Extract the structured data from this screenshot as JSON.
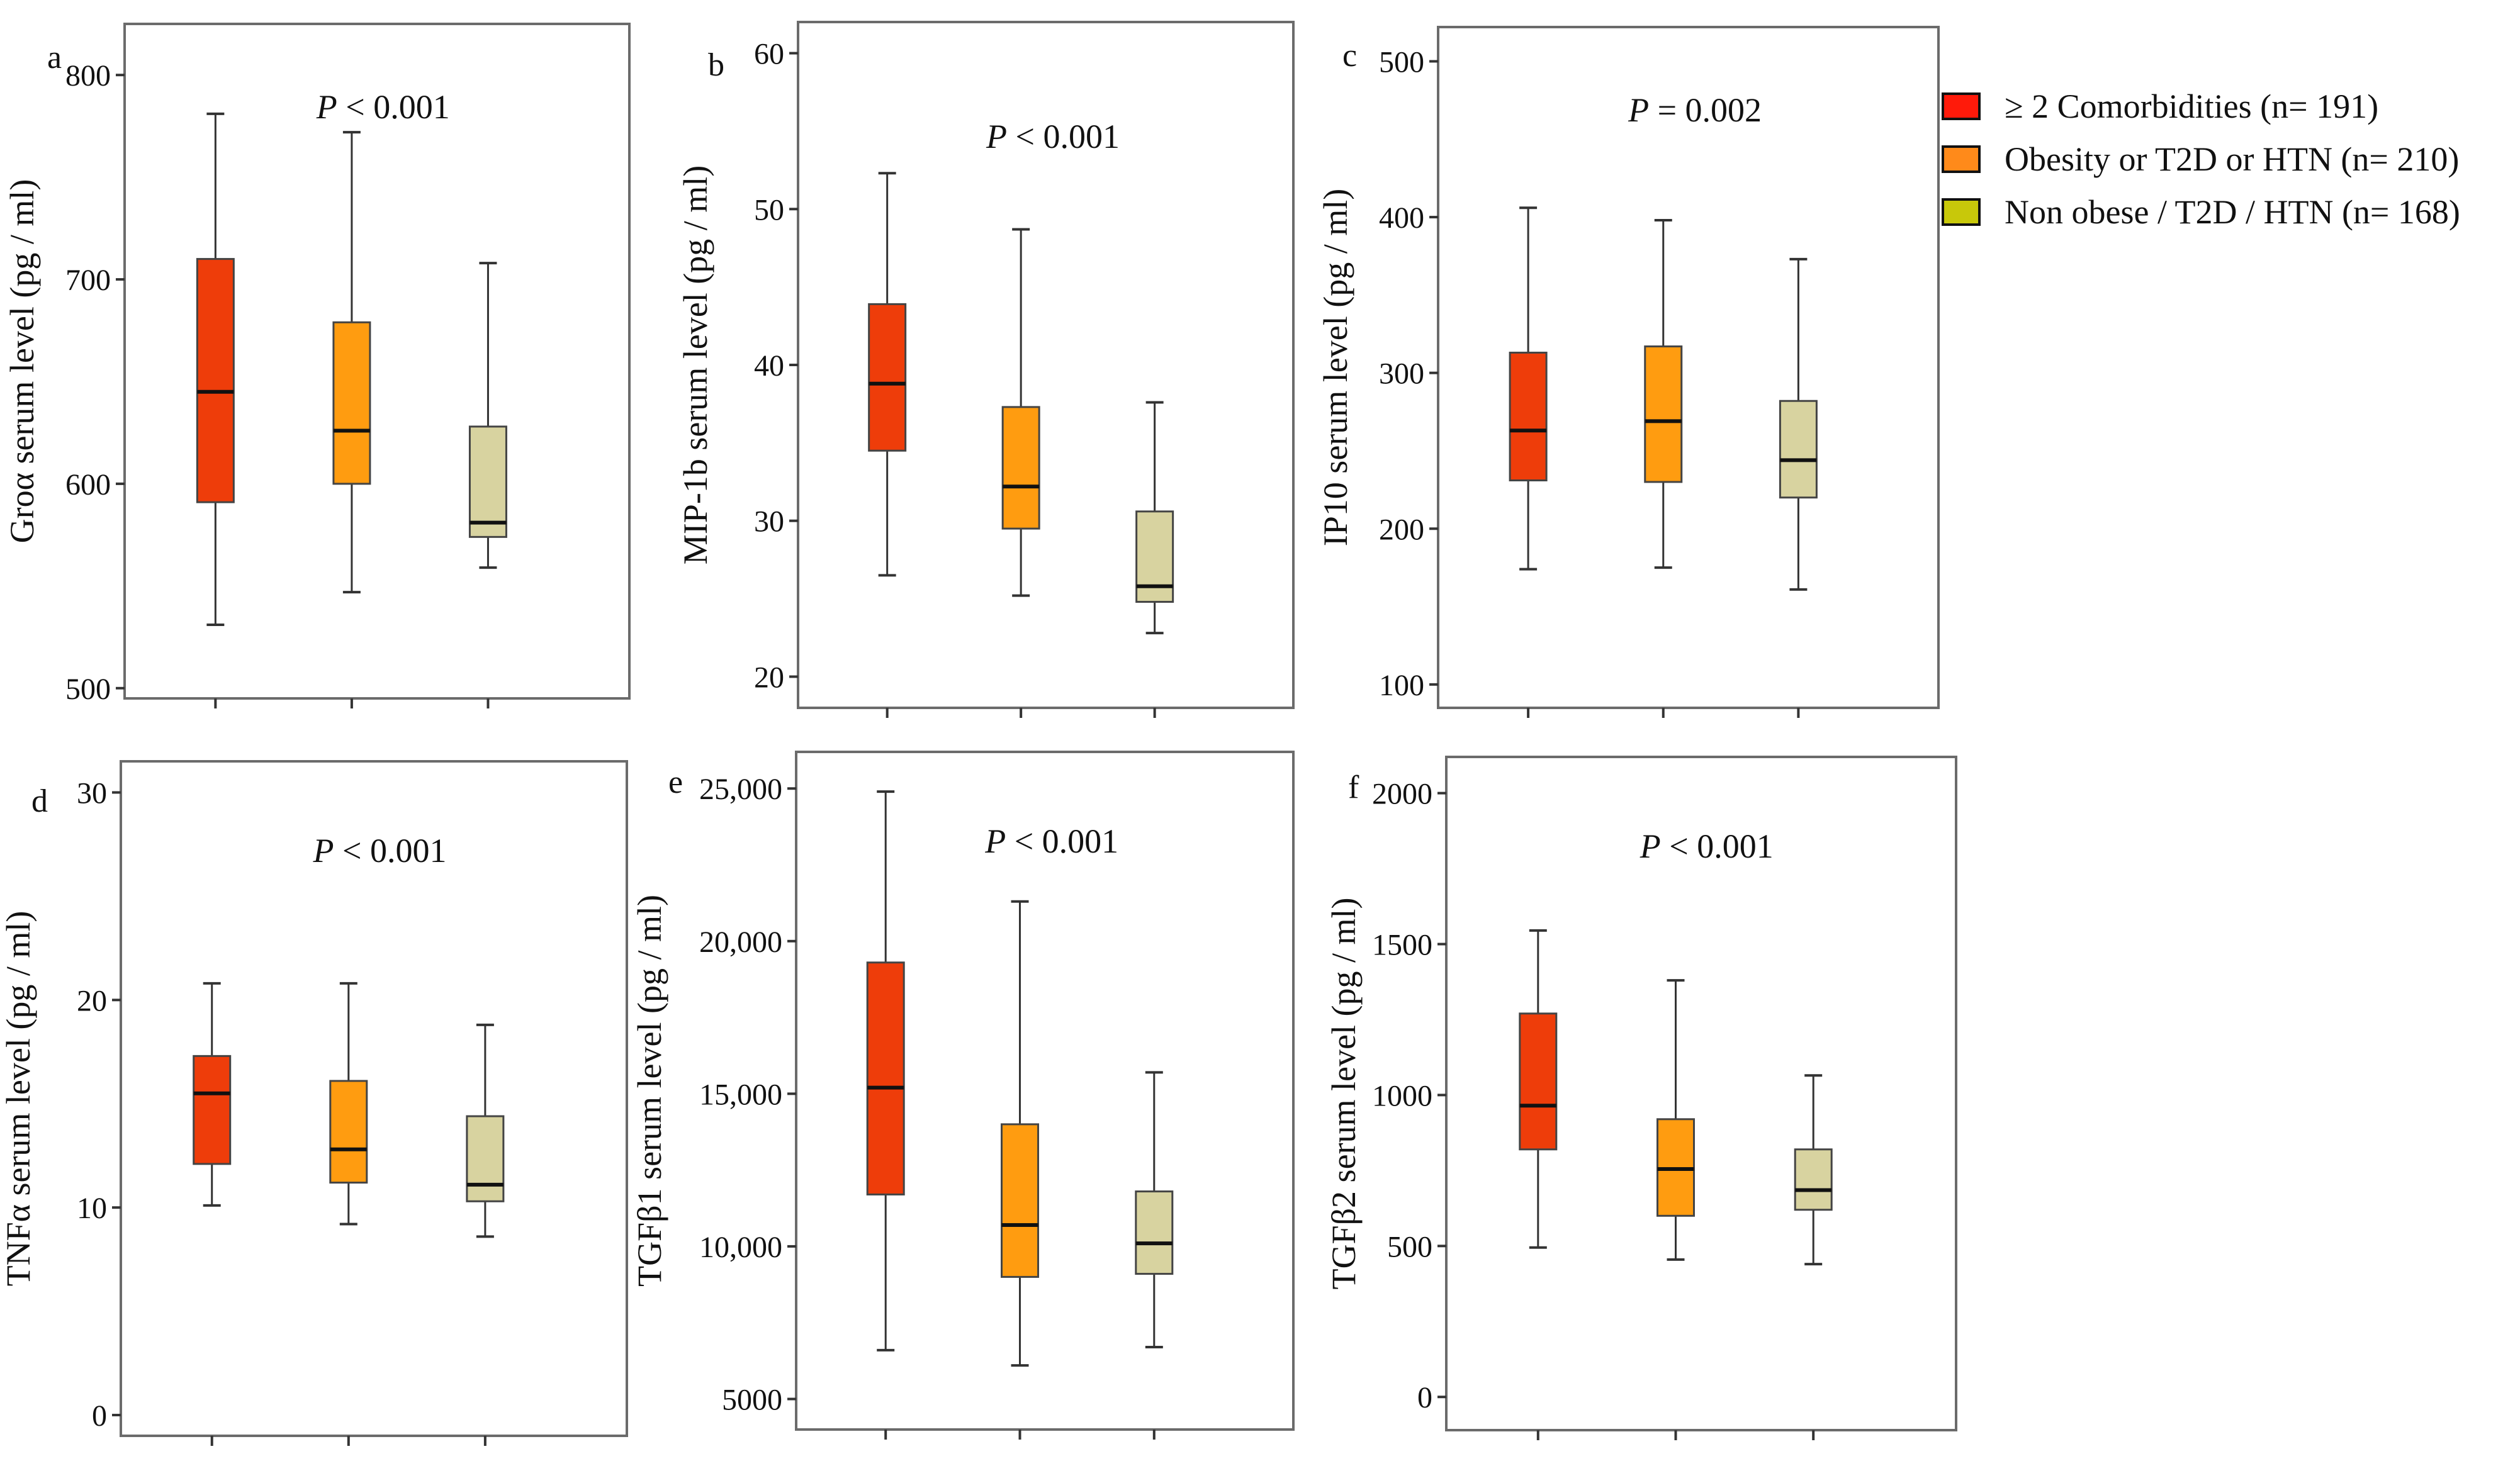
{
  "legend": {
    "items": [
      {
        "label": "≥ 2 Comorbidities (n= 191)",
        "color": "#ff1a0a"
      },
      {
        "label": "Obesity or T2D or HTN (n= 210)",
        "color": "#ff8a1a"
      },
      {
        "label": "Non obese / T2D / HTN (n= 168)",
        "color": "#c8c80a"
      }
    ]
  },
  "chart_data": [
    {
      "type": "box",
      "panel": "a",
      "p_value": "< 0.001",
      "ylabel": "Groα serum level (pg / ml)",
      "ylim": [
        495,
        825
      ],
      "yticks": [
        500,
        600,
        700,
        800
      ],
      "ytick_labels": [
        "500",
        "600",
        "700",
        "800"
      ],
      "series": [
        {
          "whisker_low": 531,
          "q1": 591,
          "median": 645,
          "q3": 710,
          "whisker_high": 781,
          "fill": "#ee3d0a"
        },
        {
          "whisker_low": 547,
          "q1": 600,
          "median": 626,
          "q3": 679,
          "whisker_high": 772,
          "fill": "#ff9c10"
        },
        {
          "whisker_low": 559,
          "q1": 574,
          "median": 581,
          "q3": 628,
          "whisker_high": 708,
          "fill": "#d8d3a0"
        }
      ]
    },
    {
      "type": "box",
      "panel": "b",
      "p_value": "< 0.001",
      "ylabel": "MIP-1b serum level (pg / ml)",
      "ylim": [
        18,
        62
      ],
      "yticks": [
        20,
        30,
        40,
        50,
        60
      ],
      "ytick_labels": [
        "20",
        "30",
        "40",
        "50",
        "60"
      ],
      "series": [
        {
          "whisker_low": 26.5,
          "q1": 34.5,
          "median": 38.8,
          "q3": 43.9,
          "whisker_high": 52.3,
          "fill": "#ee3d0a"
        },
        {
          "whisker_low": 25.2,
          "q1": 29.5,
          "median": 32.2,
          "q3": 37.3,
          "whisker_high": 48.7,
          "fill": "#ff9c10"
        },
        {
          "whisker_low": 22.8,
          "q1": 24.8,
          "median": 25.8,
          "q3": 30.6,
          "whisker_high": 37.6,
          "fill": "#d8d3a0"
        }
      ]
    },
    {
      "type": "box",
      "panel": "c",
      "p_value": "= 0.002",
      "ylabel": "IP10 serum level (pg / ml)",
      "ylim": [
        85,
        522
      ],
      "yticks": [
        100,
        200,
        300,
        400,
        500
      ],
      "ytick_labels": [
        "100",
        "200",
        "300",
        "400",
        "500"
      ],
      "series": [
        {
          "whisker_low": 174,
          "q1": 231,
          "median": 263,
          "q3": 313,
          "whisker_high": 406,
          "fill": "#ee3d0a"
        },
        {
          "whisker_low": 175,
          "q1": 230,
          "median": 269,
          "q3": 317,
          "whisker_high": 398,
          "fill": "#ff9c10"
        },
        {
          "whisker_low": 161,
          "q1": 220,
          "median": 244,
          "q3": 282,
          "whisker_high": 373,
          "fill": "#d8d3a0"
        }
      ]
    },
    {
      "type": "box",
      "panel": "d",
      "p_value": "< 0.001",
      "ylabel": "TNFα serum level (pg / ml)",
      "ylim": [
        -1,
        31.5
      ],
      "yticks": [
        0,
        10,
        20,
        30
      ],
      "ytick_labels": [
        "0",
        "10",
        "20",
        "30"
      ],
      "series": [
        {
          "whisker_low": 10.1,
          "q1": 12.1,
          "median": 15.5,
          "q3": 17.3,
          "whisker_high": 20.8,
          "fill": "#ee3d0a"
        },
        {
          "whisker_low": 9.2,
          "q1": 11.2,
          "median": 12.8,
          "q3": 16.1,
          "whisker_high": 20.8,
          "fill": "#ff9c10"
        },
        {
          "whisker_low": 8.6,
          "q1": 10.3,
          "median": 11.1,
          "q3": 14.4,
          "whisker_high": 18.8,
          "fill": "#d8d3a0"
        }
      ]
    },
    {
      "type": "box",
      "panel": "e",
      "p_value": "< 0.001",
      "ylabel": "TGFβ1 serum level (pg / ml)",
      "ylim": [
        4000,
        26200
      ],
      "yticks": [
        5000,
        10000,
        15000,
        20000,
        25000
      ],
      "ytick_labels": [
        "5000",
        "10,000",
        "15,000",
        "20,000",
        "25,000"
      ],
      "series": [
        {
          "whisker_low": 6600,
          "q1": 11700,
          "median": 15200,
          "q3": 19300,
          "whisker_high": 24900,
          "fill": "#ee3d0a"
        },
        {
          "whisker_low": 6100,
          "q1": 9000,
          "median": 10700,
          "q3": 14000,
          "whisker_high": 21300,
          "fill": "#ff9c10"
        },
        {
          "whisker_low": 6700,
          "q1": 9100,
          "median": 10100,
          "q3": 11800,
          "whisker_high": 15700,
          "fill": "#d8d3a0"
        }
      ]
    },
    {
      "type": "box",
      "panel": "f",
      "p_value": "< 0.001",
      "ylabel": "TGFβ2 serum level (pg / ml)",
      "ylim": [
        -110,
        2120
      ],
      "yticks": [
        0,
        500,
        1000,
        1500,
        2000
      ],
      "ytick_labels": [
        "0",
        "500",
        "1000",
        "1500",
        "2000"
      ],
      "series": [
        {
          "whisker_low": 495,
          "q1": 820,
          "median": 965,
          "q3": 1270,
          "whisker_high": 1545,
          "fill": "#ee3d0a"
        },
        {
          "whisker_low": 455,
          "q1": 600,
          "median": 755,
          "q3": 920,
          "whisker_high": 1380,
          "fill": "#ff9c10"
        },
        {
          "whisker_low": 440,
          "q1": 620,
          "median": 685,
          "q3": 820,
          "whisker_high": 1065,
          "fill": "#d8d3a0"
        }
      ]
    }
  ]
}
